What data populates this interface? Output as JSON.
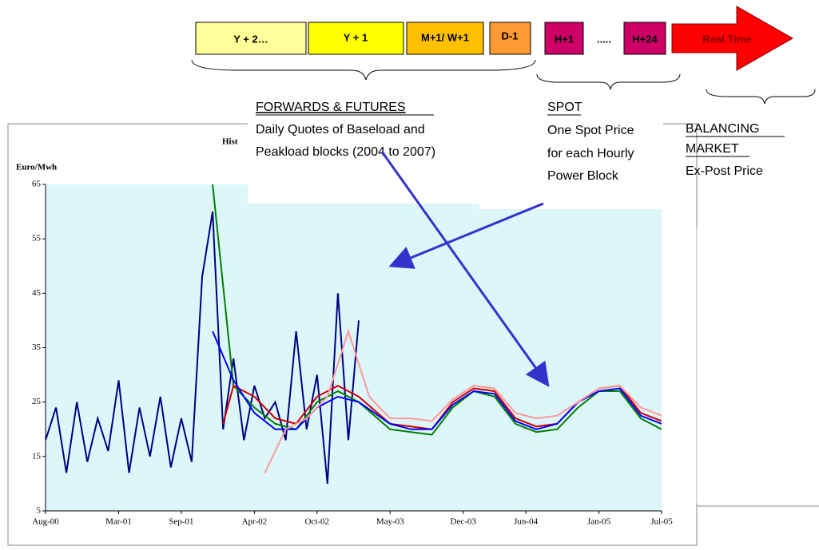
{
  "timeline": {
    "boxes": [
      "Y + 2…",
      "Y + 1",
      "M+1/ W+1",
      "D-1",
      "H+1",
      ".....",
      "H+24",
      "Real Time"
    ]
  },
  "forwards": {
    "heading": "FORWARDS & FUTURES",
    "lines": [
      "Daily Quotes of Baseload and",
      "Peakload blocks (2004 to 2007)"
    ]
  },
  "spot": {
    "heading": "SPOT",
    "lines": [
      "One Spot Price",
      "for each Hourly",
      "Power Block"
    ]
  },
  "balancing": {
    "heading": [
      "BALANCING",
      "MARKET"
    ],
    "lines": [
      "Ex-Post Price"
    ]
  },
  "chart_data": {
    "type": "line",
    "title": "Hist",
    "y_label": "Euro/Mwh",
    "ylim": [
      5,
      65
    ],
    "yticks": [
      5,
      15,
      25,
      35,
      45,
      55,
      65
    ],
    "xlim": [
      "2000-08",
      "2005-07"
    ],
    "xticks": [
      {
        "value": "2000-08",
        "label": "Aug-00"
      },
      {
        "value": "2001-03",
        "label": "Mar-01"
      },
      {
        "value": "2001-09",
        "label": "Sep-01"
      },
      {
        "value": "2002-04",
        "label": "Apr-02"
      },
      {
        "value": "2002-10",
        "label": "Oct-02"
      },
      {
        "value": "2003-05",
        "label": "May-03"
      },
      {
        "value": "2003-12",
        "label": "Dec-03"
      },
      {
        "value": "2004-06",
        "label": "Jun-04"
      },
      {
        "value": "2005-01",
        "label": "Jan-05"
      },
      {
        "value": "2005-07",
        "label": "Jul-05"
      }
    ],
    "series": [
      {
        "color": "#000080",
        "x": [
          "2000-08",
          "2000-09",
          "2000-10",
          "2000-11",
          "2000-12",
          "2001-01",
          "2001-02",
          "2001-03",
          "2001-04",
          "2001-05",
          "2001-06",
          "2001-07",
          "2001-08",
          "2001-09",
          "2001-10",
          "2001-11",
          "2001-12",
          "2002-01",
          "2002-02",
          "2002-03",
          "2002-04",
          "2002-05",
          "2002-06",
          "2002-07",
          "2002-08",
          "2002-09",
          "2002-10",
          "2002-11",
          "2002-12",
          "2003-01",
          "2003-02"
        ],
        "values": [
          18,
          24,
          12,
          25,
          14,
          22,
          16,
          29,
          12,
          24,
          15,
          26,
          13,
          22,
          14,
          48,
          60,
          20,
          33,
          18,
          28,
          22,
          25,
          18,
          38,
          20,
          30,
          10,
          45,
          18,
          40
        ]
      },
      {
        "color": "#008000",
        "x": [
          "2001-12",
          "2002-02",
          "2002-04",
          "2002-06",
          "2002-08",
          "2002-10",
          "2002-12",
          "2003-02",
          "2003-05",
          "2003-07",
          "2003-09",
          "2003-11",
          "2004-01",
          "2004-03",
          "2004-05",
          "2004-07",
          "2004-09",
          "2004-11",
          "2005-01",
          "2005-03",
          "2005-05",
          "2005-07"
        ],
        "values": [
          65,
          28,
          24,
          21,
          20,
          25,
          27,
          25,
          20,
          19.5,
          19,
          24,
          27,
          26,
          21,
          19.5,
          20,
          24,
          27,
          27,
          22,
          20
        ]
      },
      {
        "color": "#cc0000",
        "x": [
          "2002-01",
          "2002-02",
          "2002-04",
          "2002-06",
          "2002-08",
          "2002-10",
          "2002-12",
          "2003-02",
          "2003-05",
          "2003-07",
          "2003-09",
          "2003-11",
          "2004-01",
          "2004-03",
          "2004-05",
          "2004-07",
          "2004-09",
          "2004-11",
          "2005-01",
          "2005-03",
          "2005-05",
          "2005-07"
        ],
        "values": [
          21,
          28,
          26,
          22,
          21,
          26,
          28,
          26,
          21,
          20.5,
          20,
          25,
          27.5,
          27,
          22,
          20.5,
          21,
          25,
          27.5,
          28,
          23,
          21.5
        ]
      },
      {
        "color": "#0000ff",
        "x": [
          "2001-12",
          "2002-02",
          "2002-04",
          "2002-06",
          "2002-08",
          "2002-10",
          "2002-12",
          "2003-02",
          "2003-05",
          "2003-07",
          "2003-09",
          "2003-11",
          "2004-01",
          "2004-03",
          "2004-05",
          "2004-07",
          "2004-09",
          "2004-11",
          "2005-01",
          "2005-03",
          "2005-05",
          "2005-07"
        ],
        "values": [
          38,
          29,
          23,
          20,
          20,
          24,
          26,
          25,
          21,
          20,
          20,
          24.5,
          27,
          26.5,
          21.5,
          20,
          21,
          25,
          27,
          27.5,
          22.5,
          21
        ]
      },
      {
        "color": "#ff9999",
        "x": [
          "2002-05",
          "2002-07",
          "2002-09",
          "2002-11",
          "2003-01",
          "2003-03",
          "2003-05",
          "2003-07",
          "2003-09",
          "2003-11",
          "2004-01",
          "2004-03",
          "2004-05",
          "2004-07",
          "2004-09",
          "2004-11",
          "2005-01",
          "2005-03",
          "2005-05",
          "2005-07"
        ],
        "values": [
          12,
          20,
          22,
          26,
          38,
          26,
          22,
          22,
          21.5,
          25.5,
          28,
          27.5,
          23,
          22,
          22.5,
          25,
          27.5,
          28,
          24,
          22.5
        ]
      }
    ]
  }
}
